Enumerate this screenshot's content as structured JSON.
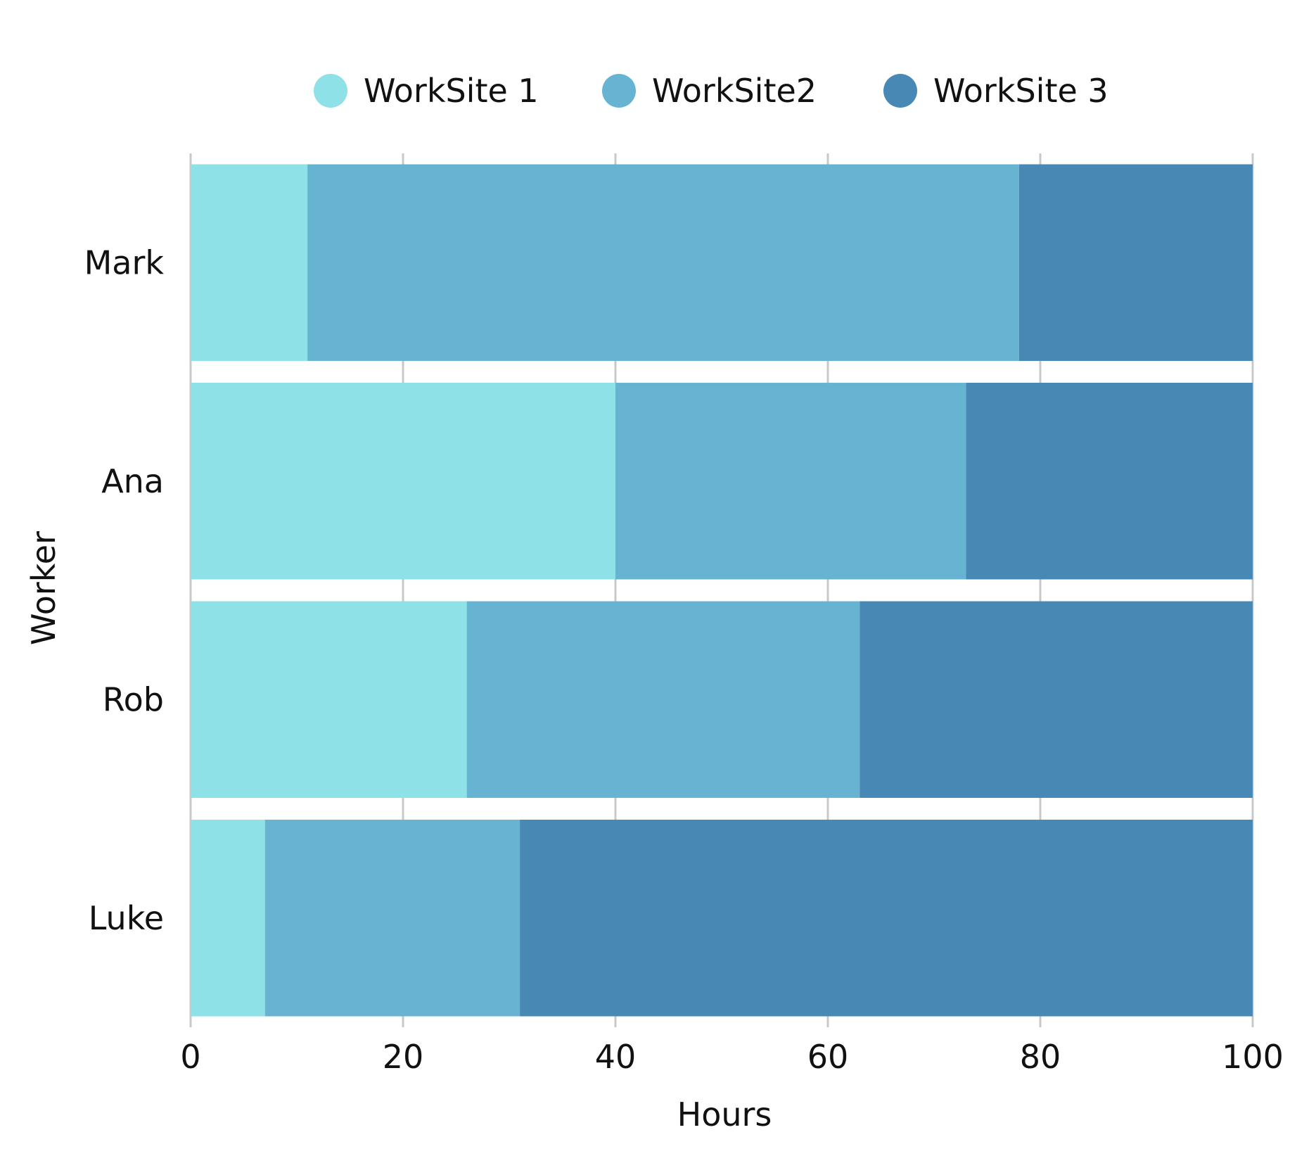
{
  "chart_data": {
    "type": "bar",
    "orientation": "horizontal",
    "stacked": true,
    "categories": [
      "Mark",
      "Ana",
      "Rob",
      "Luke"
    ],
    "series": [
      {
        "name": "WorkSite 1",
        "color": "#8ee2e7",
        "values": [
          11,
          40,
          26,
          7
        ]
      },
      {
        "name": "WorkSite2",
        "color": "#66b4d2",
        "values": [
          67,
          33,
          37,
          24
        ]
      },
      {
        "name": "WorkSite 3",
        "color": "#4888b4",
        "values": [
          22,
          27,
          37,
          69
        ]
      }
    ],
    "xlabel": "Hours",
    "ylabel": "Worker",
    "xlim": [
      0,
      100
    ],
    "xticks": [
      "0",
      "20",
      "40",
      "60",
      "80",
      "100"
    ],
    "grid": true,
    "legend_position": "top"
  }
}
